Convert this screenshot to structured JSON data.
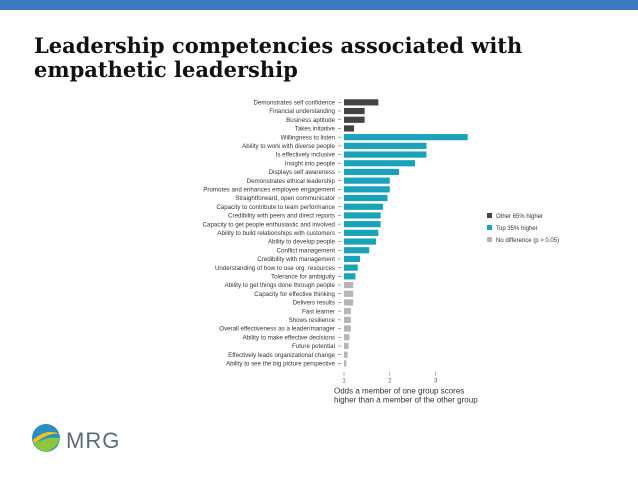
{
  "slide": {
    "title": "Leadership competencies associated with empathetic leadership"
  },
  "logo": {
    "text": "MRG",
    "icon": "globe-swoosh-icon"
  },
  "colors": {
    "accent_bar": "#3b78bf",
    "other_higher": "#444444",
    "top_higher": "#1aa3b8",
    "no_difference": "#b5b5b5"
  },
  "chart_data": {
    "type": "bar",
    "orientation": "horizontal",
    "xlabel": "Odds a member of one group scores higher than a member of the other group",
    "xticks": [
      "1",
      "2",
      "3"
    ],
    "xlim": [
      1,
      3.75
    ],
    "legend_position": "right",
    "legend": [
      {
        "key": "other",
        "label": "Other 65% higher"
      },
      {
        "key": "top",
        "label": "Top 35% higher"
      },
      {
        "key": "none",
        "label": "No difference (p > 0.05)"
      }
    ],
    "bars": [
      {
        "label": "Demonstrates self confidence",
        "value": 1.75,
        "group": "other"
      },
      {
        "label": "Financial understanding",
        "value": 1.45,
        "group": "other"
      },
      {
        "label": "Business aptitude",
        "value": 1.45,
        "group": "other"
      },
      {
        "label": "Takes initiative",
        "value": 1.22,
        "group": "other"
      },
      {
        "label": "Willingness to listen",
        "value": 3.7,
        "group": "top"
      },
      {
        "label": "Ability to work with diverse people",
        "value": 2.8,
        "group": "top"
      },
      {
        "label": "Is effectively inclusive",
        "value": 2.8,
        "group": "top"
      },
      {
        "label": "Insight into people",
        "value": 2.55,
        "group": "top"
      },
      {
        "label": "Displays self awareness",
        "value": 2.2,
        "group": "top"
      },
      {
        "label": "Demonstrates ethical leadership",
        "value": 2.0,
        "group": "top"
      },
      {
        "label": "Promotes and enhances employee engagement",
        "value": 2.0,
        "group": "top"
      },
      {
        "label": "Straightforward, open communicator",
        "value": 1.95,
        "group": "top"
      },
      {
        "label": "Capacity to contribute to team performance",
        "value": 1.85,
        "group": "top"
      },
      {
        "label": "Credibility with peers and direct reports",
        "value": 1.8,
        "group": "top"
      },
      {
        "label": "Capacity to get people enthusiastic and involved",
        "value": 1.8,
        "group": "top"
      },
      {
        "label": "Ability to build relationships with customers",
        "value": 1.75,
        "group": "top"
      },
      {
        "label": "Ability to develop people",
        "value": 1.7,
        "group": "top"
      },
      {
        "label": "Conflict management",
        "value": 1.55,
        "group": "top"
      },
      {
        "label": "Credibility with management",
        "value": 1.35,
        "group": "top"
      },
      {
        "label": "Understanding of how to use org. resources",
        "value": 1.3,
        "group": "top"
      },
      {
        "label": "Tolerance for ambiguity",
        "value": 1.25,
        "group": "top"
      },
      {
        "label": "Ability to get things done through people",
        "value": 1.2,
        "group": "none"
      },
      {
        "label": "Capacity for effective thinking",
        "value": 1.2,
        "group": "none"
      },
      {
        "label": "Delivers results",
        "value": 1.2,
        "group": "none"
      },
      {
        "label": "Fast learner",
        "value": 1.15,
        "group": "none"
      },
      {
        "label": "Shows resilience",
        "value": 1.15,
        "group": "none"
      },
      {
        "label": "Overall effectiveness as a leader/manager",
        "value": 1.15,
        "group": "none"
      },
      {
        "label": "Ability to make effective decisions",
        "value": 1.12,
        "group": "none"
      },
      {
        "label": "Future potential",
        "value": 1.1,
        "group": "none"
      },
      {
        "label": "Effectively leads organizational change",
        "value": 1.08,
        "group": "none"
      },
      {
        "label": "Ability to see the big picture perspective",
        "value": 1.05,
        "group": "none"
      }
    ]
  }
}
